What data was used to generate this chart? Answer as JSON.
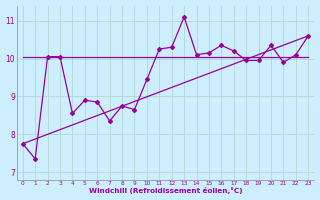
{
  "xlabel": "Windchill (Refroidissement éolien,°C)",
  "background_color": "#cceeff",
  "grid_color": "#aaddcc",
  "line_color": "#990099",
  "x_ticks": [
    0,
    1,
    2,
    3,
    4,
    5,
    6,
    7,
    8,
    9,
    10,
    11,
    12,
    13,
    14,
    15,
    16,
    17,
    18,
    19,
    20,
    21,
    22,
    23
  ],
  "ylim": [
    6.8,
    11.4
  ],
  "xlim": [
    -0.5,
    23.5
  ],
  "yticks": [
    7,
    8,
    9,
    10,
    11
  ],
  "series1_x": [
    0,
    1,
    2,
    3,
    4,
    5,
    6,
    7,
    8,
    9,
    10,
    11,
    12,
    13,
    14,
    15,
    16,
    17,
    18,
    19,
    20,
    21,
    22,
    23
  ],
  "series1_y": [
    7.75,
    7.35,
    10.05,
    10.05,
    8.55,
    8.9,
    8.85,
    8.35,
    8.75,
    8.65,
    9.45,
    10.25,
    10.3,
    11.1,
    10.1,
    10.15,
    10.35,
    10.2,
    9.95,
    9.95,
    10.35,
    9.9,
    10.1,
    10.6
  ],
  "series2_x": [
    0,
    23
  ],
  "series2_y": [
    10.05,
    10.05
  ],
  "series3_x": [
    0,
    23
  ],
  "series3_y": [
    7.75,
    10.6
  ]
}
